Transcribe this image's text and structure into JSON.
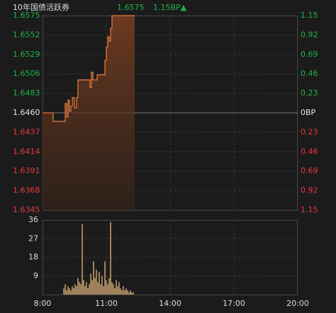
{
  "chart_data": [
    {
      "type": "line",
      "title": "10年国债活跃券",
      "price_label": "1.6575",
      "change_label": "1.15BP▲",
      "step": true,
      "area": true,
      "color": "#e2773b",
      "up_color": "#1fb545",
      "down_color": "#e8383d",
      "xlim": [
        "8:00",
        "20:00"
      ],
      "x": [
        "8:00",
        "8:30",
        "9:04",
        "9:08",
        "9:12",
        "9:16",
        "9:20",
        "9:24",
        "9:30",
        "9:36",
        "9:40",
        "10:14",
        "10:18",
        "10:22",
        "10:28",
        "10:34",
        "10:56",
        "11:00",
        "11:04",
        "11:08",
        "11:12",
        "11:16",
        "12:20"
      ],
      "values": [
        1.646,
        1.645,
        1.6471,
        1.6455,
        1.6475,
        1.6462,
        1.6468,
        1.6478,
        1.6466,
        1.6478,
        1.6499,
        1.649,
        1.6508,
        1.6499,
        1.6499,
        1.6505,
        1.6522,
        1.6538,
        1.655,
        1.6545,
        1.656,
        1.6575,
        1.6575
      ],
      "ylim": [
        1.6345,
        1.6575
      ],
      "yticks": [
        1.6575,
        1.6552,
        1.6529,
        1.6506,
        1.6483,
        {
          "value": 1.646,
          "label": "1.6460"
        },
        1.6437,
        1.6414,
        1.6391,
        1.6368,
        1.6345
      ],
      "y2lim": [
        -1.15,
        1.15
      ],
      "y2ticks": [
        1.15,
        0.92,
        0.69,
        0.46,
        0.23,
        {
          "value": 0,
          "label": "0BP"
        },
        {
          "value": -0.23,
          "label": "0.23"
        },
        {
          "value": -0.46,
          "label": "0.46"
        },
        {
          "value": -0.69,
          "label": "0.69"
        },
        {
          "value": -0.92,
          "label": "0.92"
        },
        {
          "value": -1.15,
          "label": "1.15"
        }
      ],
      "grid": true
    },
    {
      "type": "bar",
      "color": "#c9a371",
      "xlim": [
        "8:00",
        "20:00"
      ],
      "xticks": [
        "8:00",
        "11:00",
        "14:00",
        "17:00",
        "20:00"
      ],
      "x": [
        "9:00",
        "9:04",
        "9:08",
        "9:12",
        "9:16",
        "9:20",
        "9:24",
        "9:28",
        "9:32",
        "9:36",
        "9:40",
        "9:44",
        "9:48",
        "9:52",
        "9:56",
        "10:00",
        "10:04",
        "10:08",
        "10:12",
        "10:16",
        "10:20",
        "10:24",
        "10:28",
        "10:32",
        "10:36",
        "10:40",
        "10:44",
        "10:48",
        "10:52",
        "10:56",
        "11:00",
        "11:04",
        "11:08",
        "11:12",
        "11:16",
        "11:20",
        "11:24",
        "11:28",
        "11:32",
        "11:36",
        "11:40",
        "11:44",
        "11:48",
        "11:52",
        "11:56",
        "12:00",
        "12:04",
        "12:08",
        "12:12",
        "12:16"
      ],
      "values": [
        3,
        5,
        2,
        4,
        3,
        2,
        4,
        3,
        5,
        4,
        8,
        6,
        5,
        34,
        7,
        4,
        6,
        3,
        5,
        10,
        7,
        16,
        8,
        12,
        6,
        11,
        5,
        9,
        4,
        16,
        7,
        5,
        8,
        35,
        6,
        5,
        3,
        7,
        4,
        6,
        3,
        2,
        4,
        2,
        3,
        2,
        1,
        2,
        1,
        1
      ],
      "ylim": [
        0,
        36
      ],
      "yticks": [
        36,
        27,
        18,
        9
      ],
      "grid": true
    }
  ]
}
